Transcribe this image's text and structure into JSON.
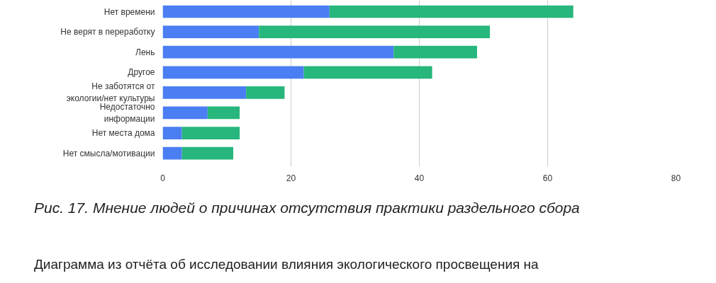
{
  "chart_data": {
    "type": "bar",
    "orientation": "horizontal",
    "stacked": true,
    "categories": [
      "Нет времени",
      "Не верят в переработку",
      "Лень",
      "Другое",
      "Не заботятся от экологии/нет культуры",
      "Недостаточно информации",
      "Нет места дома",
      "Нет смысла/мотивации"
    ],
    "series": [
      {
        "color": "#4a7ef2",
        "values": [
          26,
          15,
          36,
          22,
          13,
          7,
          3,
          3
        ]
      },
      {
        "color": "#27b67c",
        "values": [
          38,
          36,
          13,
          20,
          6,
          5,
          9,
          8
        ]
      }
    ],
    "xlim": [
      0,
      80
    ],
    "xticks": [
      0,
      20,
      40,
      60,
      80
    ],
    "grid": "x",
    "annotations": [
      "Рис. 17. Мнение людей о причинах отсутствия практики раздельного сбора",
      "Диаграмма из отчёта об исследовании влияния экологического просвещения на"
    ]
  }
}
